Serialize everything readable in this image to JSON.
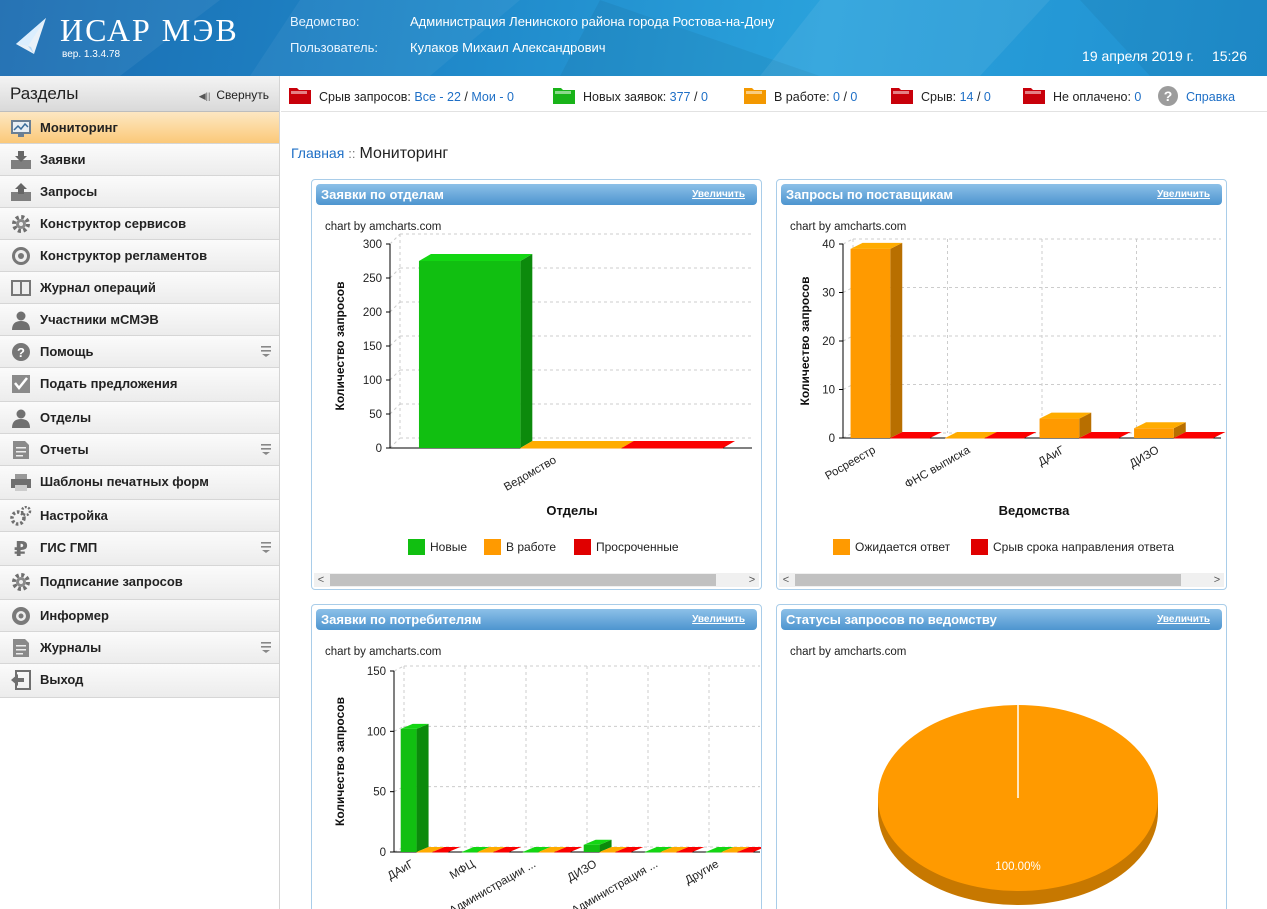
{
  "header": {
    "app_title": "ИСАР МЭВ",
    "version": "вер. 1.3.4.78",
    "agency_label": "Ведомство:",
    "agency_value": "Администрация Ленинского района города Ростова-на-Дону",
    "user_label": "Пользователь:",
    "user_value": "Кулаков Михаил Александрович",
    "date": "19 апреля 2019 г.",
    "time": "15:26"
  },
  "sidebar": {
    "title": "Разделы",
    "collapse_label": "Свернуть",
    "items": [
      {
        "label": "Мониторинг",
        "icon": "monitor-icon",
        "active": true,
        "expandable": false
      },
      {
        "label": "Заявки",
        "icon": "inbox-icon",
        "active": false,
        "expandable": false
      },
      {
        "label": "Запросы",
        "icon": "outbox-icon",
        "active": false,
        "expandable": false
      },
      {
        "label": "Конструктор сервисов",
        "icon": "gear-icon",
        "active": false,
        "expandable": false
      },
      {
        "label": "Конструктор регламентов",
        "icon": "cog-wheel-icon",
        "active": false,
        "expandable": false
      },
      {
        "label": "Журнал операций",
        "icon": "book-icon",
        "active": false,
        "expandable": false
      },
      {
        "label": "Участники мСМЭВ",
        "icon": "user-icon",
        "active": false,
        "expandable": false
      },
      {
        "label": "Помощь",
        "icon": "question-icon",
        "active": false,
        "expandable": true
      },
      {
        "label": "Подать предложения",
        "icon": "checklist-icon",
        "active": false,
        "expandable": false
      },
      {
        "label": "Отделы",
        "icon": "user-icon",
        "active": false,
        "expandable": false
      },
      {
        "label": "Отчеты",
        "icon": "document-icon",
        "active": false,
        "expandable": true
      },
      {
        "label": "Шаблоны печатных форм",
        "icon": "printer-icon",
        "active": false,
        "expandable": false
      },
      {
        "label": "Настройка",
        "icon": "gears-icon",
        "active": false,
        "expandable": false
      },
      {
        "label": "ГИС ГМП",
        "icon": "ruble-icon",
        "active": false,
        "expandable": true
      },
      {
        "label": "Подписание запросов",
        "icon": "gear-icon",
        "active": false,
        "expandable": false
      },
      {
        "label": "Информер",
        "icon": "informer-icon",
        "active": false,
        "expandable": false
      },
      {
        "label": "Журналы",
        "icon": "document-icon",
        "active": false,
        "expandable": true
      },
      {
        "label": "Выход",
        "icon": "exit-icon",
        "active": false,
        "expandable": false
      }
    ]
  },
  "statusbar": {
    "items": [
      {
        "label": "Срыв запросов:",
        "link1": "Все - 22",
        "link2": "Мои - 0",
        "folder_color": "#c8000a"
      },
      {
        "label": "Новых заявок:",
        "link1": "377",
        "link2": "0",
        "folder_color": "#19b319"
      },
      {
        "label": "В работе:",
        "link1": "0",
        "link2": "0",
        "folder_color": "#f39800"
      },
      {
        "label": "Срыв:",
        "link1": "14",
        "link2": "0",
        "folder_color": "#c8000a"
      },
      {
        "label": "Не оплачено:",
        "link1": "0",
        "link2": null,
        "folder_color": "#c8000a"
      }
    ],
    "help_label": "Справка"
  },
  "breadcrumb": {
    "home": "Главная",
    "separator": "::",
    "current": "Мониторинг"
  },
  "panels": [
    {
      "title": "Заявки по отделам",
      "zoom": "Увеличить",
      "credit": "chart by amcharts.com"
    },
    {
      "title": "Запросы по поставщикам",
      "zoom": "Увеличить",
      "credit": "chart by amcharts.com"
    },
    {
      "title": "Заявки по потребителям",
      "zoom": "Увеличить",
      "credit": "chart by amcharts.com"
    },
    {
      "title": "Статусы запросов по ведомству",
      "zoom": "Увеличить",
      "credit": "chart by amcharts.com"
    }
  ],
  "colors": {
    "new": "#11bf11",
    "in_work": "#ff9a00",
    "overdue": "#e00000",
    "accent_link": "#1e6fc6"
  },
  "chart_data": [
    {
      "type": "bar",
      "categories": [
        "Ведомство"
      ],
      "series": [
        {
          "name": "Новые",
          "values": [
            275
          ],
          "color": "#11bf11"
        },
        {
          "name": "В работе",
          "values": [
            0
          ],
          "color": "#ff9a00"
        },
        {
          "name": "Просроченные",
          "values": [
            0
          ],
          "color": "#e00000"
        }
      ],
      "xlabel": "Отделы",
      "ylabel": "Количество запросов",
      "ylim": [
        0,
        300
      ],
      "yticks": [
        0,
        50,
        100,
        150,
        200,
        250,
        300
      ],
      "grid": true,
      "legend": "bottom"
    },
    {
      "type": "bar",
      "categories": [
        "Росреестр",
        "ФНС выписка",
        "ДАиГ",
        "ДИЗО"
      ],
      "series": [
        {
          "name": "Ожидается ответ",
          "values": [
            39,
            0,
            4,
            2
          ],
          "color": "#ff9a00"
        },
        {
          "name": "Срыв срока направления ответа",
          "values": [
            0,
            0,
            0,
            0
          ],
          "color": "#e00000"
        }
      ],
      "xlabel": "Ведомства",
      "ylabel": "Количество запросов",
      "ylim": [
        0,
        40
      ],
      "yticks": [
        0,
        10,
        20,
        30,
        40
      ],
      "grid": true,
      "legend": "bottom"
    },
    {
      "type": "bar",
      "categories": [
        "ДАиГ",
        "МФЦ",
        "Администрации ...",
        "ДИЗО",
        "Администрация ...",
        "Другие"
      ],
      "series": [
        {
          "name": "Новые",
          "values": [
            102,
            0,
            0,
            6,
            0,
            0
          ],
          "color": "#11bf11"
        },
        {
          "name": "В работе",
          "values": [
            0,
            0,
            0,
            0,
            0,
            0
          ],
          "color": "#ff9a00"
        },
        {
          "name": "Просроченные",
          "values": [
            0,
            0,
            0,
            0,
            0,
            0
          ],
          "color": "#e00000"
        }
      ],
      "xlabel": "",
      "ylabel": "Количество запросов",
      "ylim": [
        0,
        150
      ],
      "yticks": [
        0,
        50,
        100,
        150
      ],
      "grid": true
    },
    {
      "type": "pie",
      "slices": [
        {
          "value": 100,
          "color": "#ff9a00",
          "label": "100.00%"
        }
      ]
    }
  ]
}
